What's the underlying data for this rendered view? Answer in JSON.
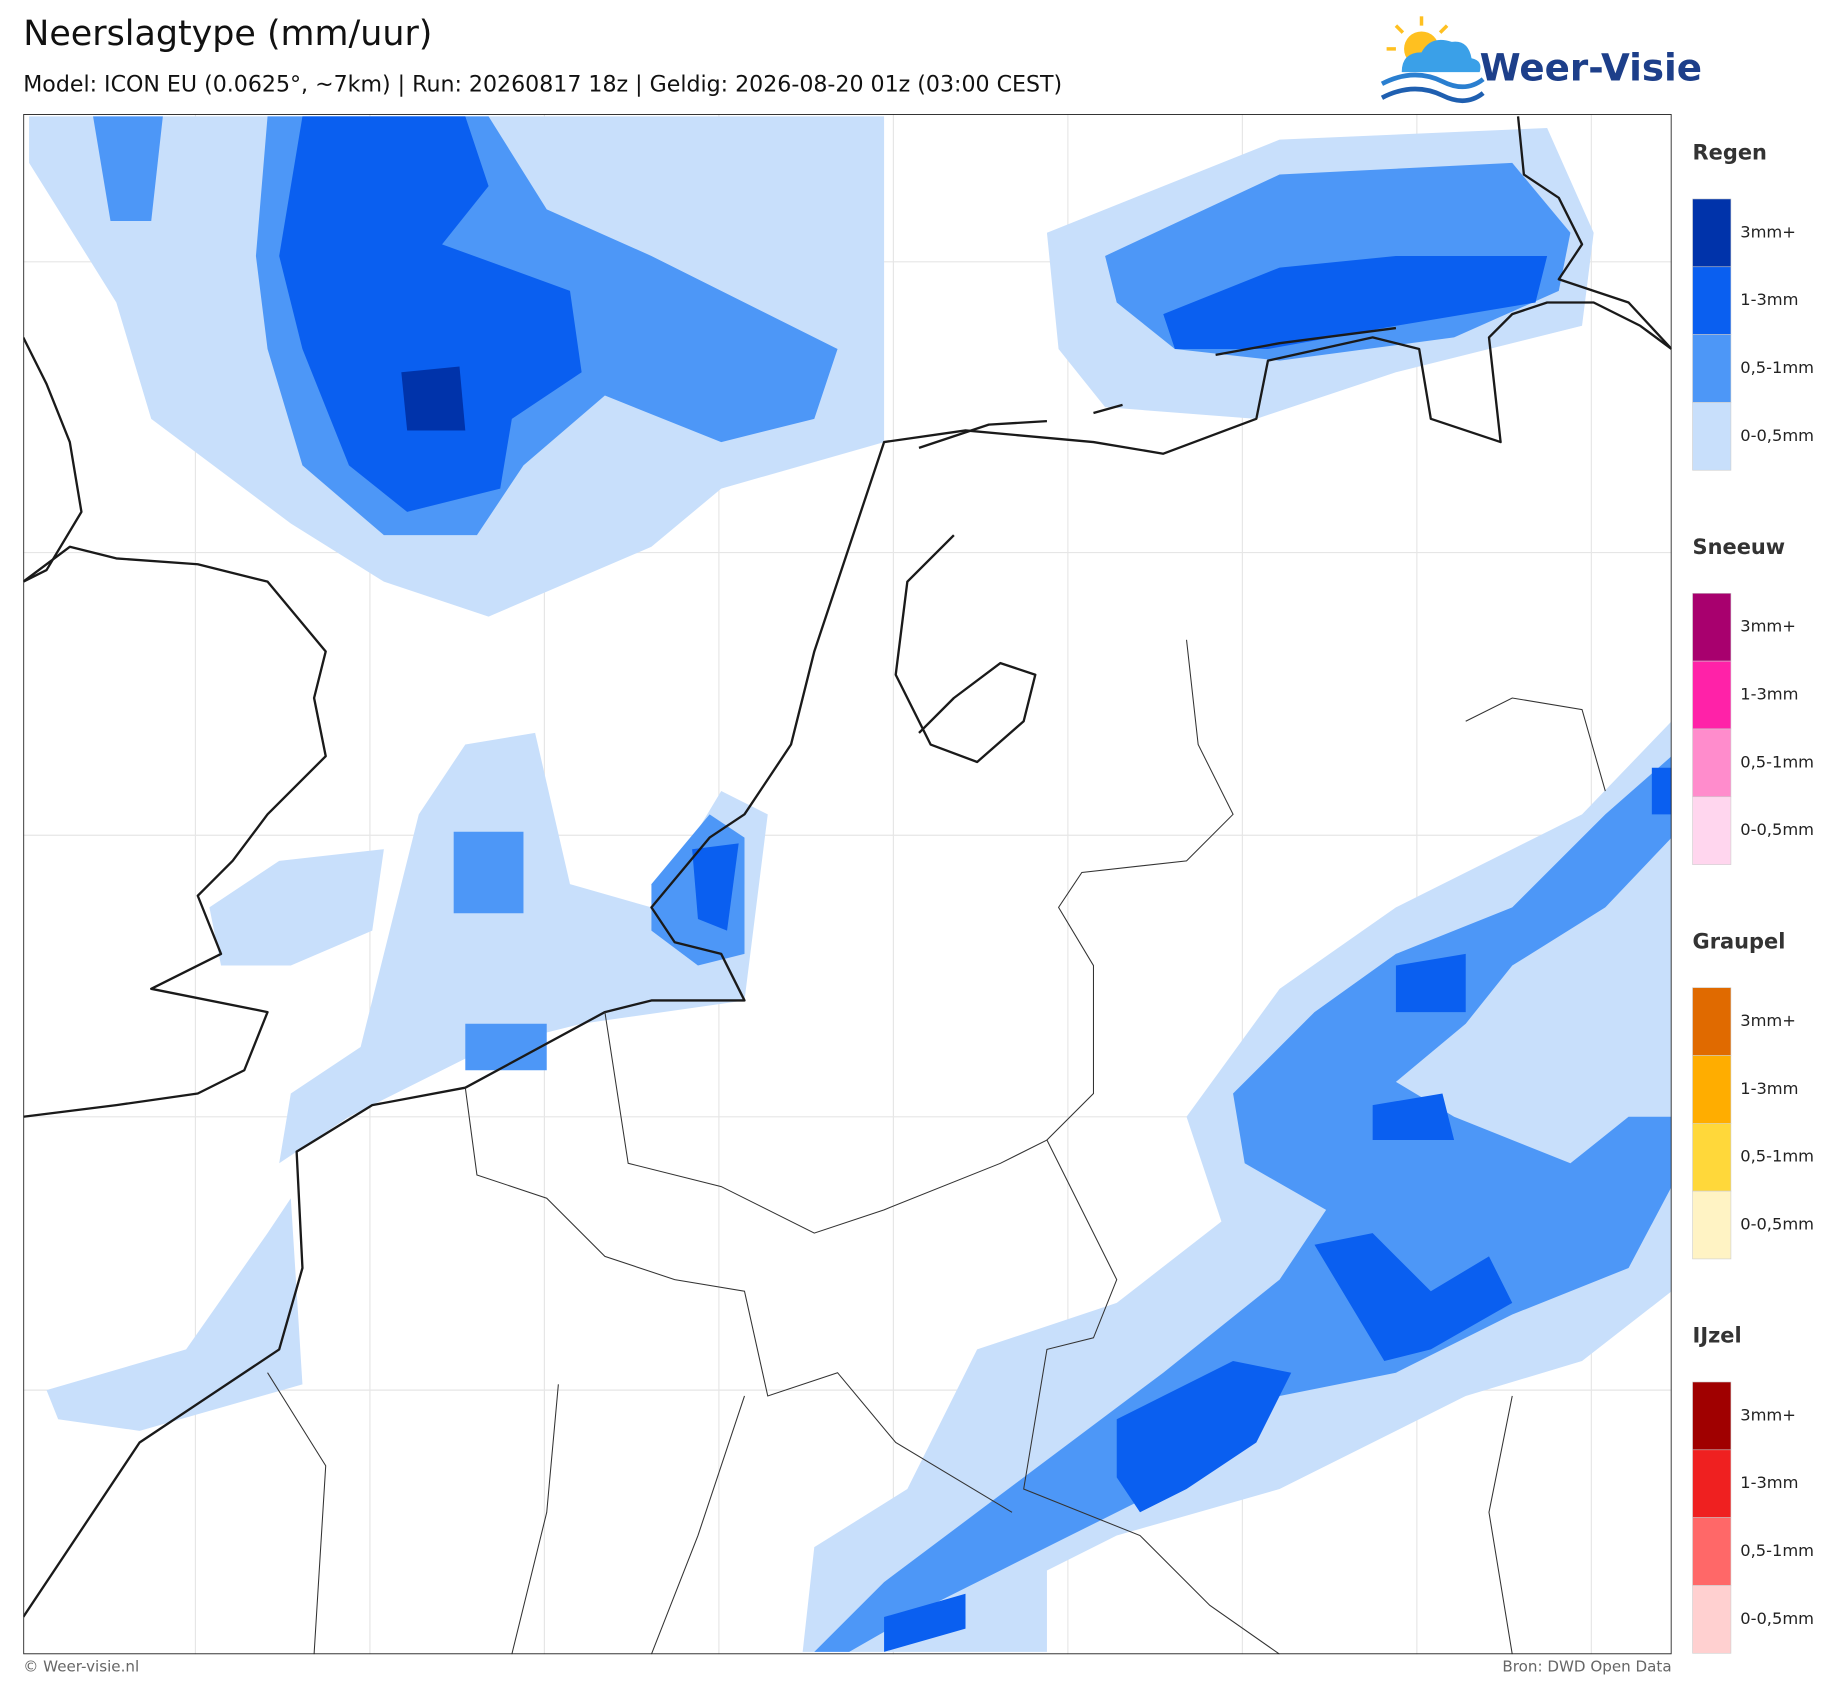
{
  "header": {
    "title": "Neerslagtype (mm/uur)",
    "subtitle": "Model: ICON EU (0.0625°, ~7km)  |  Run: 20260817 18z  |  Geldig: 2026-08-20 01z (03:00 CEST)"
  },
  "logo": {
    "text": "Weer-Visie"
  },
  "legend": [
    {
      "title": "Regen",
      "items": [
        {
          "label": "3mm+",
          "color": "#0033aa"
        },
        {
          "label": "1-3mm",
          "color": "#0a5ff0"
        },
        {
          "label": "0,5-1mm",
          "color": "#4d97f7"
        },
        {
          "label": "0-0,5mm",
          "color": "#c8dffb"
        }
      ]
    },
    {
      "title": "Sneeuw",
      "items": [
        {
          "label": "3mm+",
          "color": "#a8006e"
        },
        {
          "label": "1-3mm",
          "color": "#ff22a8"
        },
        {
          "label": "0,5-1mm",
          "color": "#ff8ccc"
        },
        {
          "label": "0-0,5mm",
          "color": "#ffd6ee"
        }
      ]
    },
    {
      "title": "Graupel",
      "items": [
        {
          "label": "3mm+",
          "color": "#e06a00"
        },
        {
          "label": "1-3mm",
          "color": "#ffad00"
        },
        {
          "label": "0,5-1mm",
          "color": "#ffd83a"
        },
        {
          "label": "0-0,5mm",
          "color": "#fff3c4"
        }
      ]
    },
    {
      "title": "IJzel",
      "items": [
        {
          "label": "3mm+",
          "color": "#a00000"
        },
        {
          "label": "1-3mm",
          "color": "#ef2020"
        },
        {
          "label": "0,5-1mm",
          "color": "#ff6868"
        },
        {
          "label": "0-0,5mm",
          "color": "#ffd0d0"
        }
      ]
    }
  ],
  "footer": {
    "left": "© Weer-visie.nl",
    "right": "Bron: DWD Open Data"
  }
}
